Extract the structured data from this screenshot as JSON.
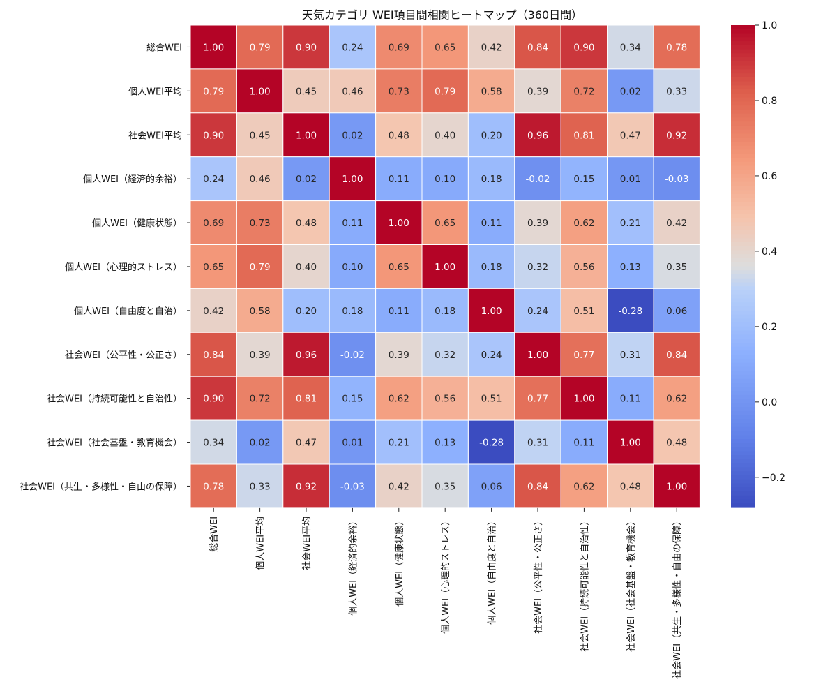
{
  "chart_data": {
    "type": "heatmap",
    "title": "天気カテゴリ WEI項目間相関ヒートマップ（360日間）",
    "labels": [
      "総合WEI",
      "個人WEI平均",
      "社会WEI平均",
      "個人WEI（経済的余裕）",
      "個人WEI（健康状態）",
      "個人WEI（心理的ストレス）",
      "個人WEI（自由度と自治）",
      "社会WEI（公平性・公正さ）",
      "社会WEI（持続可能性と自治性）",
      "社会WEI（社会基盤・教育機会）",
      "社会WEI（共生・多様性・自由の保障）"
    ],
    "matrix": [
      [
        1.0,
        0.79,
        0.9,
        0.24,
        0.69,
        0.65,
        0.42,
        0.84,
        0.9,
        0.34,
        0.78
      ],
      [
        0.79,
        1.0,
        0.45,
        0.46,
        0.73,
        0.79,
        0.58,
        0.39,
        0.72,
        0.02,
        0.33
      ],
      [
        0.9,
        0.45,
        1.0,
        0.02,
        0.48,
        0.4,
        0.2,
        0.96,
        0.81,
        0.47,
        0.92
      ],
      [
        0.24,
        0.46,
        0.02,
        1.0,
        0.11,
        0.1,
        0.18,
        -0.02,
        0.15,
        0.01,
        -0.03
      ],
      [
        0.69,
        0.73,
        0.48,
        0.11,
        1.0,
        0.65,
        0.11,
        0.39,
        0.62,
        0.21,
        0.42
      ],
      [
        0.65,
        0.79,
        0.4,
        0.1,
        0.65,
        1.0,
        0.18,
        0.32,
        0.56,
        0.13,
        0.35
      ],
      [
        0.42,
        0.58,
        0.2,
        0.18,
        0.11,
        0.18,
        1.0,
        0.24,
        0.51,
        -0.28,
        0.06
      ],
      [
        0.84,
        0.39,
        0.96,
        -0.02,
        0.39,
        0.32,
        0.24,
        1.0,
        0.77,
        0.31,
        0.84
      ],
      [
        0.9,
        0.72,
        0.81,
        0.15,
        0.62,
        0.56,
        0.51,
        0.77,
        1.0,
        0.11,
        0.62
      ],
      [
        0.34,
        0.02,
        0.47,
        0.01,
        0.21,
        0.13,
        -0.28,
        0.31,
        0.11,
        1.0,
        0.48
      ],
      [
        0.78,
        0.33,
        0.92,
        -0.03,
        0.42,
        0.35,
        0.06,
        0.84,
        0.62,
        0.48,
        1.0
      ]
    ],
    "colorbar": {
      "vmin": -0.28,
      "vmax": 1.0,
      "ticks": [
        1.0,
        0.8,
        0.6,
        0.4,
        0.2,
        0.0,
        -0.2
      ],
      "tick_labels": [
        "1.0",
        "0.8",
        "0.6",
        "0.4",
        "0.2",
        "0.0",
        "−0.2"
      ],
      "colormap": "coolwarm",
      "low_color": "#3b4cc0",
      "mid_color": "#dddddd",
      "high_color": "#b40426"
    }
  }
}
